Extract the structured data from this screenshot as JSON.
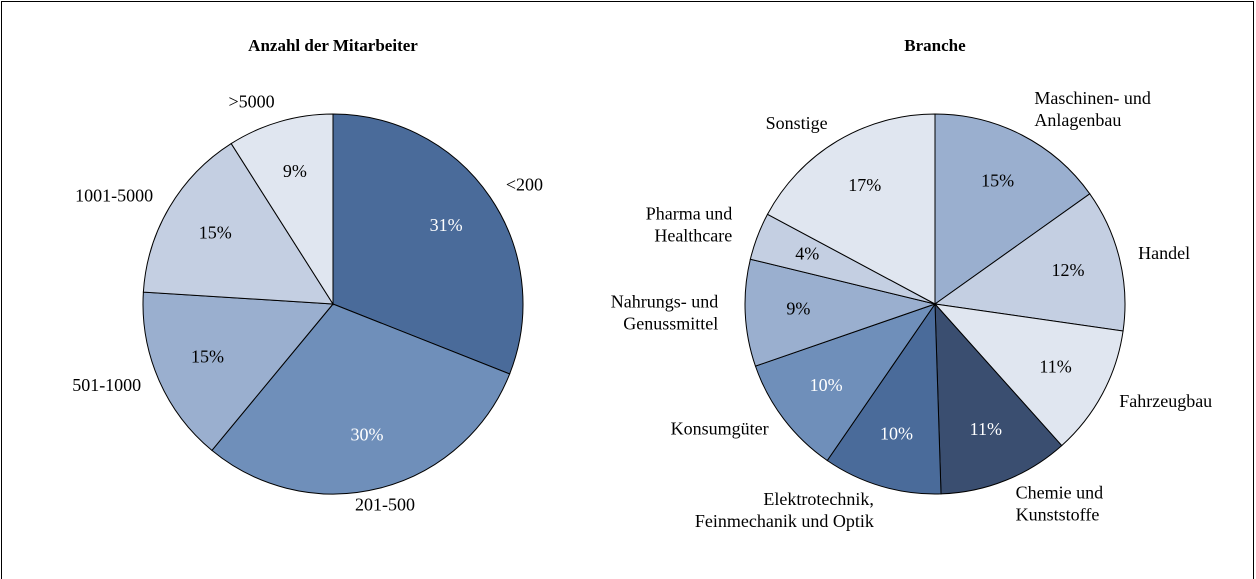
{
  "chart_data": [
    {
      "type": "pie",
      "title": "Anzahl der Mitarbeiter",
      "categories": [
        "<200",
        "201-500",
        "501-1000",
        "1001-5000",
        ">5000"
      ],
      "values": [
        31,
        30,
        15,
        15,
        9
      ],
      "value_labels": [
        "31%",
        "30%",
        "15%",
        "15%",
        "9%"
      ],
      "colors": [
        "#4a6b9a",
        "#6f8fba",
        "#9aafcf",
        "#c4cfe2",
        "#e0e6f0"
      ]
    },
    {
      "type": "pie",
      "title": "Branche",
      "categories": [
        "Maschinen- und\nAnlagenbau",
        "Handel",
        "Fahrzeugbau",
        "Chemie und\nKunststoffe",
        "Elektrotechnik,\nFeinmechanik und Optik",
        "Konsumgüter",
        "Nahrungs- und\nGenussmittel",
        "Pharma und\nHealthcare",
        "Sonstige"
      ],
      "values": [
        15,
        12,
        11,
        11,
        10,
        10,
        9,
        4,
        17
      ],
      "value_labels": [
        "15%",
        "12%",
        "11%",
        "11%",
        "10%",
        "10%",
        "9%",
        "4%",
        "17%"
      ],
      "colors": [
        "#9aafcf",
        "#c4cfe2",
        "#e0e6f0",
        "#3a4e70",
        "#4a6b9a",
        "#6f8fba",
        "#9aafcf",
        "#c4cfe2",
        "#e0e6f0"
      ]
    }
  ]
}
